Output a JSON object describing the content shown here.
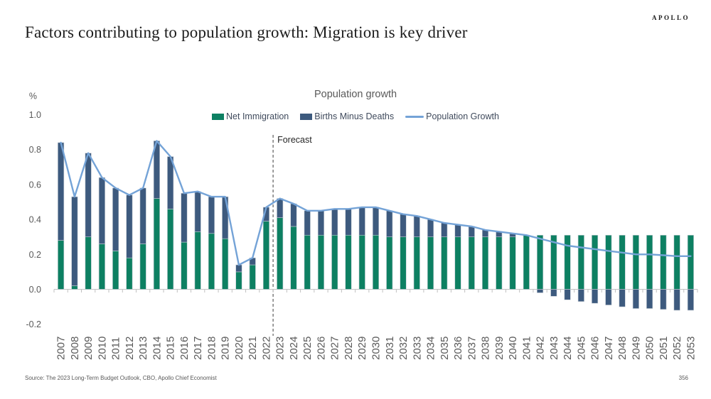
{
  "slide": {
    "logo": "APOLLO",
    "title": "Factors contributing to population growth: Migration is key driver",
    "source": "Source: The 2023 Long-Term Budget Outlook, CBO, Apollo Chief Economist",
    "page_number": "356"
  },
  "chart_data": {
    "type": "bar",
    "subtype": "stacked-bar-with-line",
    "title": "Population growth",
    "unit_label": "%",
    "forecast_label": "Forecast",
    "forecast_boundary_after_year": "2022",
    "legend_position": "top",
    "grid": false,
    "ylim": [
      -0.2,
      1.0
    ],
    "yticks": [
      "1.0",
      "0.8",
      "0.6",
      "0.4",
      "0.2",
      "0.0",
      "-0.2"
    ],
    "categories": [
      "2007",
      "2008",
      "2009",
      "2010",
      "2011",
      "2012",
      "2013",
      "2014",
      "2015",
      "2016",
      "2017",
      "2018",
      "2019",
      "2020",
      "2021",
      "2022",
      "2023",
      "2024",
      "2025",
      "2026",
      "2027",
      "2028",
      "2029",
      "2030",
      "2031",
      "2032",
      "2033",
      "2034",
      "2035",
      "2036",
      "2037",
      "2038",
      "2039",
      "2040",
      "2041",
      "2042",
      "2043",
      "2044",
      "2045",
      "2046",
      "2047",
      "2048",
      "2049",
      "2050",
      "2051",
      "2052",
      "2053"
    ],
    "series": [
      {
        "name": "Net Immigration",
        "render": "bar",
        "color": "#0d8062",
        "values": [
          0.28,
          0.02,
          0.3,
          0.26,
          0.22,
          0.18,
          0.26,
          0.52,
          0.46,
          0.27,
          0.33,
          0.32,
          0.29,
          0.1,
          0.14,
          0.39,
          0.41,
          0.36,
          0.31,
          0.31,
          0.31,
          0.31,
          0.31,
          0.31,
          0.3,
          0.3,
          0.3,
          0.3,
          0.3,
          0.3,
          0.3,
          0.3,
          0.3,
          0.3,
          0.31,
          0.31,
          0.31,
          0.31,
          0.31,
          0.31,
          0.31,
          0.31,
          0.31,
          0.31,
          0.31,
          0.31,
          0.31
        ]
      },
      {
        "name": "Births Minus Deaths",
        "render": "bar",
        "color": "#3d5a7e",
        "values": [
          0.56,
          0.51,
          0.48,
          0.38,
          0.36,
          0.36,
          0.32,
          0.33,
          0.3,
          0.28,
          0.23,
          0.21,
          0.24,
          0.04,
          0.04,
          0.08,
          0.11,
          0.13,
          0.14,
          0.14,
          0.15,
          0.15,
          0.16,
          0.16,
          0.15,
          0.13,
          0.12,
          0.1,
          0.08,
          0.07,
          0.06,
          0.04,
          0.03,
          0.02,
          0.0,
          -0.02,
          -0.04,
          -0.06,
          -0.07,
          -0.08,
          -0.09,
          -0.1,
          -0.11,
          -0.11,
          -0.115,
          -0.12,
          -0.12
        ]
      },
      {
        "name": "Population Growth",
        "render": "line",
        "color": "#74a3d7",
        "values": [
          0.84,
          0.53,
          0.78,
          0.64,
          0.58,
          0.54,
          0.58,
          0.85,
          0.76,
          0.55,
          0.56,
          0.53,
          0.53,
          0.14,
          0.18,
          0.47,
          0.52,
          0.49,
          0.45,
          0.45,
          0.46,
          0.46,
          0.47,
          0.47,
          0.45,
          0.43,
          0.42,
          0.4,
          0.38,
          0.37,
          0.36,
          0.34,
          0.33,
          0.32,
          0.31,
          0.29,
          0.27,
          0.25,
          0.24,
          0.23,
          0.22,
          0.21,
          0.2,
          0.2,
          0.195,
          0.19,
          0.19
        ]
      }
    ],
    "colors": {
      "axis": "#c0c0c0",
      "axis_label": "#595959",
      "forecast_line": "#3f3f3f",
      "forecast_text": "#262626",
      "bar_outline": "#c6cdd5"
    }
  }
}
